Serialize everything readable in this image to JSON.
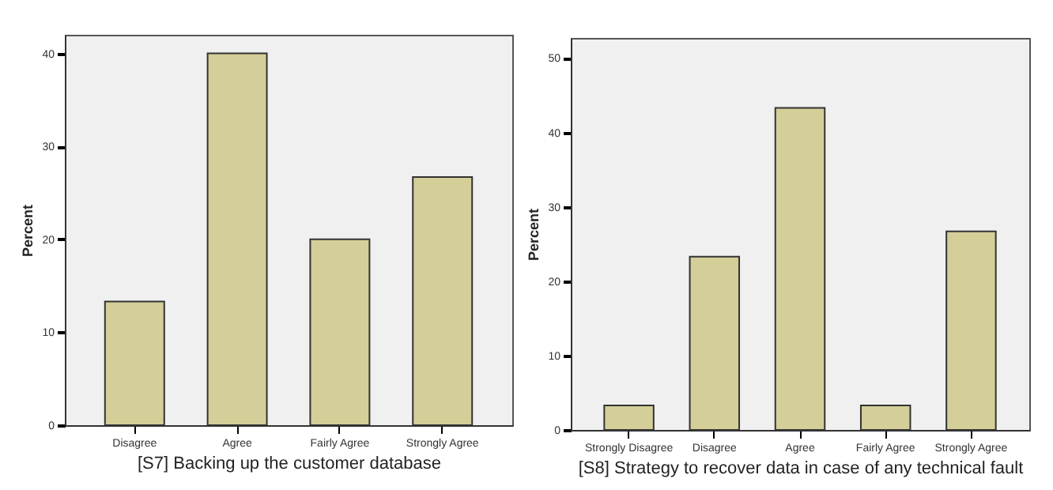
{
  "chart_data": [
    {
      "type": "bar",
      "xlabel": "[S7] Backing up the customer database",
      "ylabel": "Percent",
      "categories": [
        "Disagree",
        "Agree",
        "Fairly Agree",
        "Strongly Agree"
      ],
      "values": [
        13.3,
        40,
        20,
        26.7
      ],
      "color": "#d4ce98",
      "ylim": [
        0,
        42
      ],
      "yticks": [
        0,
        10,
        20,
        30,
        40
      ]
    },
    {
      "type": "bar",
      "xlabel": "[S8] Strategy to recover data in case of any technical fault",
      "ylabel": "Percent",
      "categories": [
        "Strongly Disagree",
        "Disagree",
        "Agree",
        "Fairly Agree",
        "Strongly Agree"
      ],
      "values": [
        3.3,
        23.3,
        43.3,
        3.3,
        26.7
      ],
      "color": "#d4ce98",
      "ylim": [
        0,
        52.7
      ],
      "yticks": [
        0,
        10,
        20,
        30,
        40,
        50
      ]
    }
  ]
}
